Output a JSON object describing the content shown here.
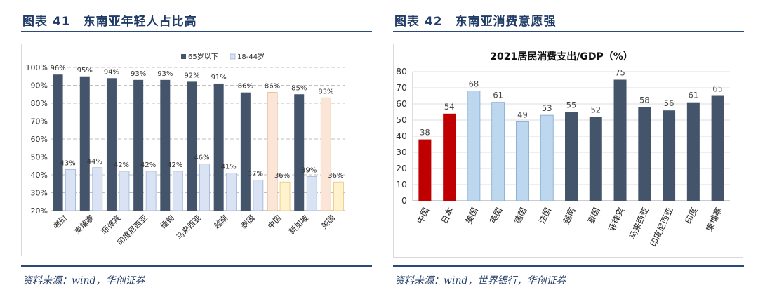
{
  "left": {
    "title": "图表 41　东南亚年轻人占比高",
    "source": "资料来源：wind，华创证券",
    "chart_data": {
      "type": "bar",
      "categories": [
        "老挝",
        "柬埔寨",
        "菲律宾",
        "印度尼西亚",
        "缅甸",
        "马来西亚",
        "越南",
        "泰国",
        "中国",
        "新加坡",
        "美国"
      ],
      "series": [
        {
          "name": "65岁以下",
          "values": [
            96,
            95,
            94,
            93,
            93,
            92,
            91,
            86,
            86,
            85,
            83
          ],
          "labels": [
            "96%",
            "95%",
            "94%",
            "93%",
            "93%",
            "92%",
            "91%",
            "86%",
            "86%",
            "85%",
            "83%"
          ]
        },
        {
          "name": "18-44岁",
          "values": [
            43,
            44,
            42,
            42,
            42,
            46,
            41,
            37,
            36,
            39,
            36
          ],
          "labels": [
            "43%",
            "44%",
            "42%",
            "42%",
            "42%",
            "46%",
            "41%",
            "37%",
            "36%",
            "39%",
            "36%"
          ]
        }
      ],
      "ylim": [
        20,
        100
      ],
      "yticks": [
        "20%",
        "30%",
        "40%",
        "50%",
        "60%",
        "70%",
        "80%",
        "90%",
        "100%"
      ],
      "highlight_categories": [
        "中国",
        "美国"
      ],
      "colors": {
        "dark": "#44546a",
        "light": "#dae3f3",
        "highlight_dark": "#fbe5d6",
        "highlight_light": "#fff2cc",
        "light_stroke": "#9db3d6",
        "hl_stroke": "#e8b38f",
        "hl2_stroke": "#e5c77a"
      },
      "legend_position": "top"
    }
  },
  "right": {
    "title": "图表 42　东南亚消费意愿强",
    "source": "资料来源：wind，世界银行，华创证券",
    "chart_data": {
      "type": "bar",
      "title": "2021居民消费支出/GDP（%）",
      "categories": [
        "中国",
        "日本",
        "美国",
        "英国",
        "德国",
        "法国",
        "越南",
        "泰国",
        "菲律宾",
        "马来西亚",
        "印度尼西亚",
        "印度",
        "柬埔寨"
      ],
      "values": [
        38,
        54,
        68,
        61,
        49,
        53,
        55,
        52,
        75,
        58,
        56,
        61,
        65
      ],
      "labels": [
        "38",
        "54",
        "68",
        "61",
        "49",
        "53",
        "55",
        "52",
        "75",
        "58",
        "56",
        "61",
        "65"
      ],
      "groups": [
        "red",
        "red",
        "light",
        "light",
        "light",
        "light",
        "dark",
        "dark",
        "dark",
        "dark",
        "dark",
        "dark",
        "dark"
      ],
      "ylim": [
        0,
        80
      ],
      "yticks": [
        "0",
        "10",
        "20",
        "30",
        "40",
        "50",
        "60",
        "70",
        "80"
      ],
      "colors": {
        "red": "#c00000",
        "light": "#bdd7ee",
        "dark": "#44546a",
        "light_stroke": "#7fa6cf"
      }
    }
  }
}
